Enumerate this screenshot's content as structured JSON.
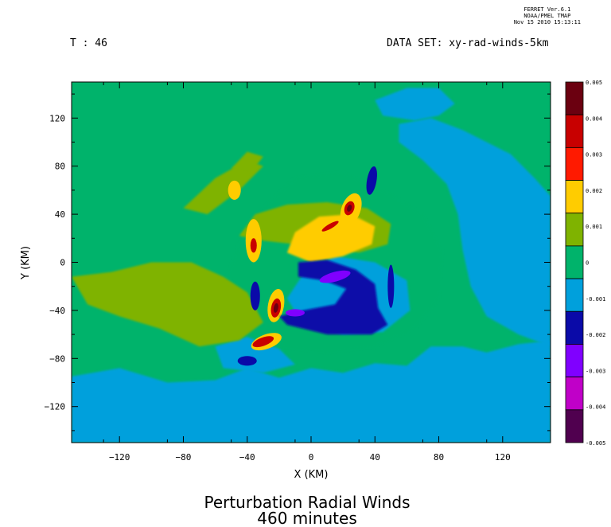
{
  "header": {
    "ferret_lines": [
      "FERRET Ver.6.1",
      "NOAA/PMEL TMAP",
      "Nov 15 2010 15:13:11"
    ],
    "time_label": "T : 46",
    "dataset_label": "DATA SET: xy-rad-winds-5km"
  },
  "chart_data": {
    "type": "heatmap",
    "title": "Perturbation Radial Winds",
    "subtitle": "460 minutes",
    "xlabel": "X (KM)",
    "ylabel": "Y (KM)",
    "xlim": [
      -150,
      150
    ],
    "ylim": [
      -150,
      150
    ],
    "x_ticks": [
      -120,
      -80,
      -40,
      0,
      40,
      80,
      120
    ],
    "y_ticks": [
      120,
      80,
      40,
      0,
      -40,
      -80,
      -120
    ],
    "colorbar": {
      "levels": [
        0.005,
        0.004,
        0.003,
        0.002,
        0.001,
        0,
        -0.001,
        -0.002,
        -0.003,
        -0.004,
        -0.005
      ],
      "level_labels": [
        "0.005",
        "0.004",
        "0.003",
        "0.002",
        "0.001",
        "0",
        "-0.001",
        "-0.002",
        "-0.003",
        "-0.004",
        "-0.005"
      ],
      "colors": [
        "#6b0010",
        "#c80000",
        "#ff1a00",
        "#ffcc00",
        "#7fb300",
        "#00b36b",
        "#00a0dc",
        "#0a0aa8",
        "#8000ff",
        "#c000c8",
        "#50004f"
      ]
    },
    "background_color": "#00b36b"
  }
}
